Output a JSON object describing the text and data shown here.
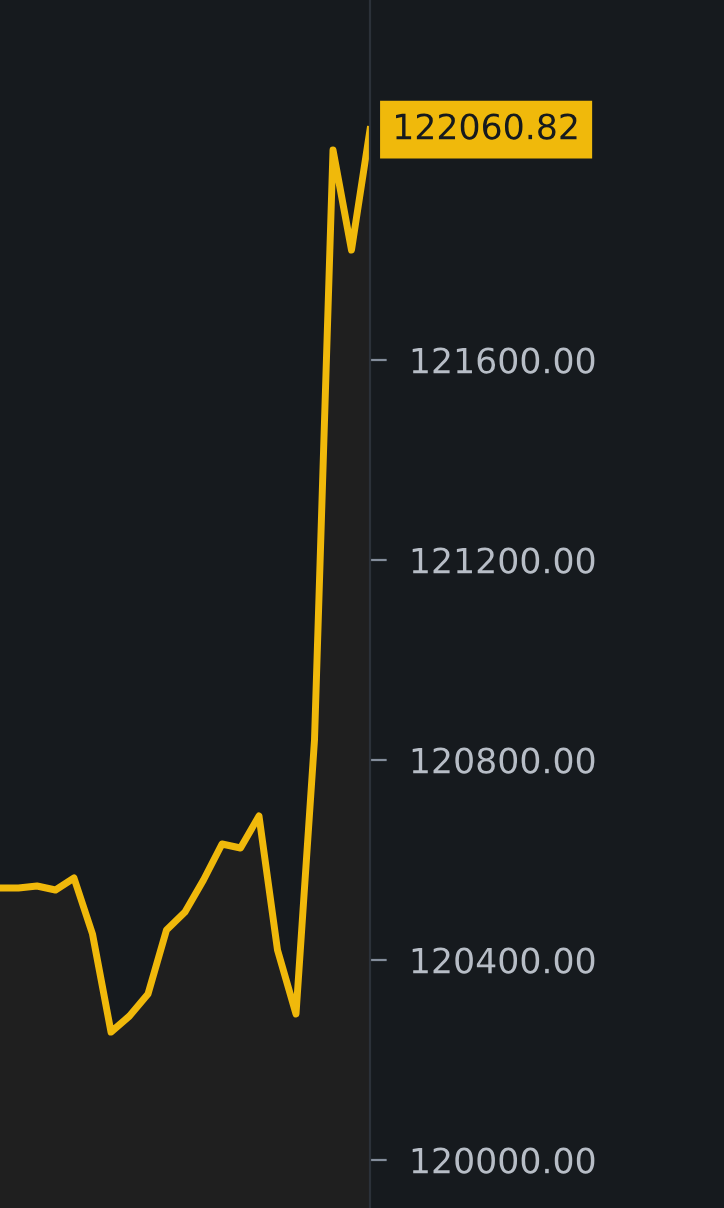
{
  "chart_data": {
    "type": "area",
    "categories": [
      null,
      null,
      null,
      null,
      null,
      null,
      null,
      null,
      null,
      null,
      null,
      null,
      null,
      null,
      null,
      null,
      null,
      null,
      null,
      null,
      null
    ],
    "series": [
      {
        "color": "#f0b90b",
        "values": [
          120544,
          120544,
          120548,
          120540,
          120564,
          120452,
          120256,
          120288,
          120332,
          120460,
          120496,
          120560,
          120632,
          120624,
          120688,
          120420,
          120292,
          120840,
          122020,
          121820,
          122060.82
        ]
      }
    ],
    "ylim": [
      119904,
      122320
    ],
    "yticks": [
      {
        "value": 120000,
        "label": "120000.00"
      },
      {
        "value": 120400,
        "label": "120400.00"
      },
      {
        "value": 120800,
        "label": "120800.00"
      },
      {
        "value": 121200,
        "label": "121200.00"
      },
      {
        "value": 121600,
        "label": "121600.00"
      }
    ],
    "tick_labels": "y",
    "grid": false,
    "annotations": [
      "122060.82"
    ]
  }
}
